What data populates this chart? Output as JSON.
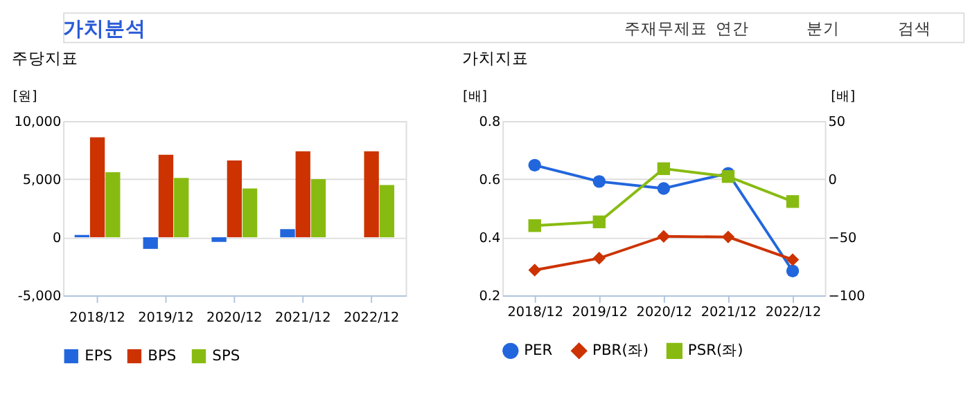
{
  "chart_data": [
    {
      "type": "other",
      "title": "가치분석",
      "annotations": [
        "주재무제표",
        "연간",
        "분기",
        "검색"
      ]
    },
    {
      "type": "bar",
      "title": "주당지표",
      "ylabel": "[원]",
      "categories": [
        "2018/12",
        "2019/12",
        "2020/12",
        "2021/12",
        "2022/12"
      ],
      "series": [
        {
          "name": "EPS",
          "color": "#2266dd",
          "values": [
            200,
            -1000,
            -400,
            700,
            null
          ]
        },
        {
          "name": "BPS",
          "color": "#cc3300",
          "values": [
            8600,
            7100,
            6600,
            7400,
            7400
          ]
        },
        {
          "name": "SPS",
          "color": "#88bb11",
          "values": [
            5600,
            5100,
            4200,
            5000,
            4500
          ]
        }
      ],
      "ylim": [
        -5000,
        10000
      ],
      "yticks": [
        {
          "value": -5000,
          "label": "-5,000"
        },
        0,
        {
          "value": 5000,
          "label": "5,000"
        },
        {
          "value": 10000,
          "label": "10,000"
        }
      ],
      "grid": "y",
      "legend": "bottom"
    },
    {
      "type": "line",
      "title": "가치지표",
      "ylabel": "[배]",
      "y2label": "[배]",
      "categories": [
        "2018/12",
        "2019/12",
        "2020/12",
        "2021/12",
        "2022/12"
      ],
      "series": [
        {
          "name": "PER",
          "color": "#2266dd",
          "marker": "circle",
          "axis": "y2",
          "values": [
            12,
            -2,
            -8,
            5,
            -79
          ]
        },
        {
          "name": "PBR(좌)",
          "color": "#cc3300",
          "marker": "diamond",
          "values": [
            0.287,
            0.328,
            0.403,
            0.401,
            0.323
          ]
        },
        {
          "name": "PSR(좌)",
          "color": "#88bb11",
          "marker": "square",
          "values": [
            0.44,
            0.453,
            0.636,
            0.609,
            0.523
          ]
        }
      ],
      "ylim": [
        0.2,
        0.8
      ],
      "yticks": [
        0.2,
        0.4,
        0.6,
        0.8
      ],
      "y2lim": [
        -100,
        50
      ],
      "y2ticks": [
        -100,
        -50,
        0,
        50
      ],
      "grid": "y",
      "legend": "bottom"
    }
  ]
}
